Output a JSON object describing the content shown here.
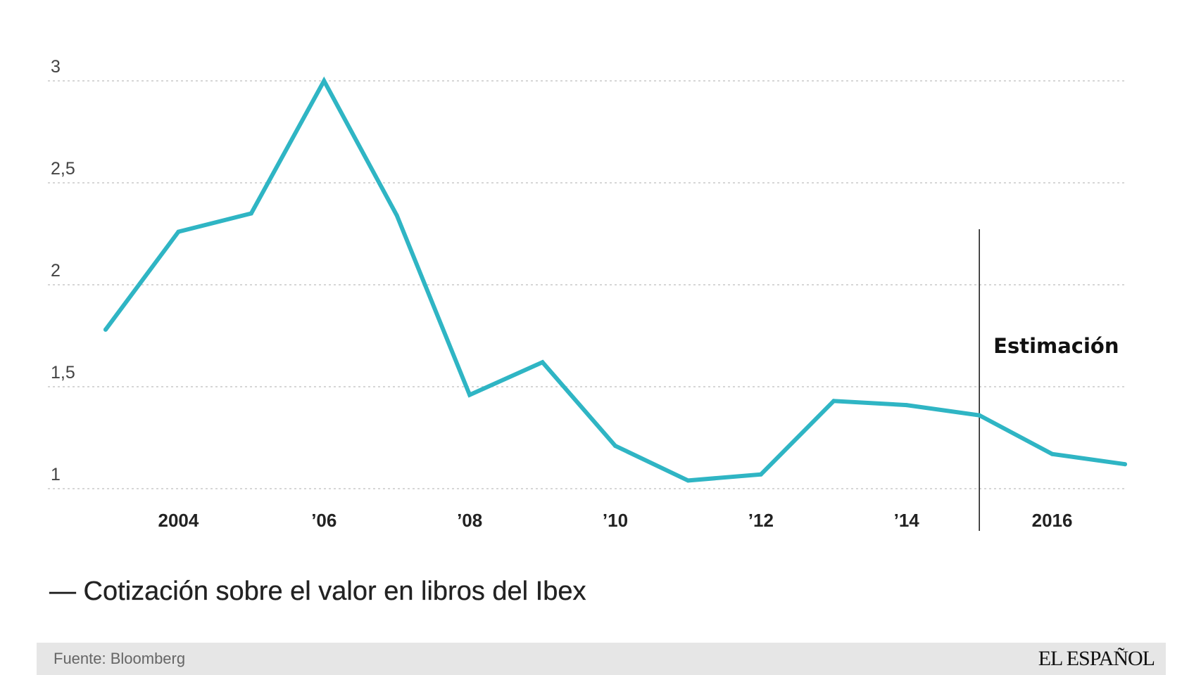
{
  "chart_data": {
    "type": "line",
    "title": "",
    "xlabel": "",
    "ylabel": "",
    "x": [
      2003,
      2004,
      2005,
      2006,
      2007,
      2008,
      2009,
      2010,
      2011,
      2012,
      2013,
      2014,
      2015,
      2016,
      2017
    ],
    "series": [
      {
        "name": "— Cotización sobre el valor en libros del Ibex",
        "values": [
          1.78,
          2.26,
          2.35,
          3.0,
          2.34,
          1.46,
          1.62,
          1.21,
          1.04,
          1.07,
          1.43,
          1.41,
          1.36,
          1.17,
          1.12
        ],
        "color": "#2fb5c4"
      }
    ],
    "ylim": [
      1,
      3
    ],
    "xlim": [
      2003,
      2017
    ],
    "yticks": [
      {
        "value": 3,
        "label": "3"
      },
      {
        "value": 2.5,
        "label": "2,5"
      },
      {
        "value": 2,
        "label": "2"
      },
      {
        "value": 1.5,
        "label": "1,5"
      },
      {
        "value": 1,
        "label": "1"
      }
    ],
    "xticks": [
      {
        "value": 2004,
        "label": "2004"
      },
      {
        "value": 2006,
        "label": "’06"
      },
      {
        "value": 2008,
        "label": "’08"
      },
      {
        "value": 2010,
        "label": "’10"
      },
      {
        "value": 2012,
        "label": "’12"
      },
      {
        "value": 2014,
        "label": "’14"
      },
      {
        "value": 2016,
        "label": "2016"
      }
    ],
    "grid": true,
    "grid_style": "dotted horizontal",
    "annotation": {
      "x": 2015,
      "label": "Estimación"
    }
  },
  "legend": {
    "label": "— Cotización sobre el valor en libros del Ibex"
  },
  "footer": {
    "source": "Fuente: Bloomberg",
    "brand": "EL ESPAÑOL"
  },
  "colors": {
    "line": "#2fb5c4",
    "grid": "#c8c8c8",
    "footer_bg": "#e6e6e6"
  }
}
